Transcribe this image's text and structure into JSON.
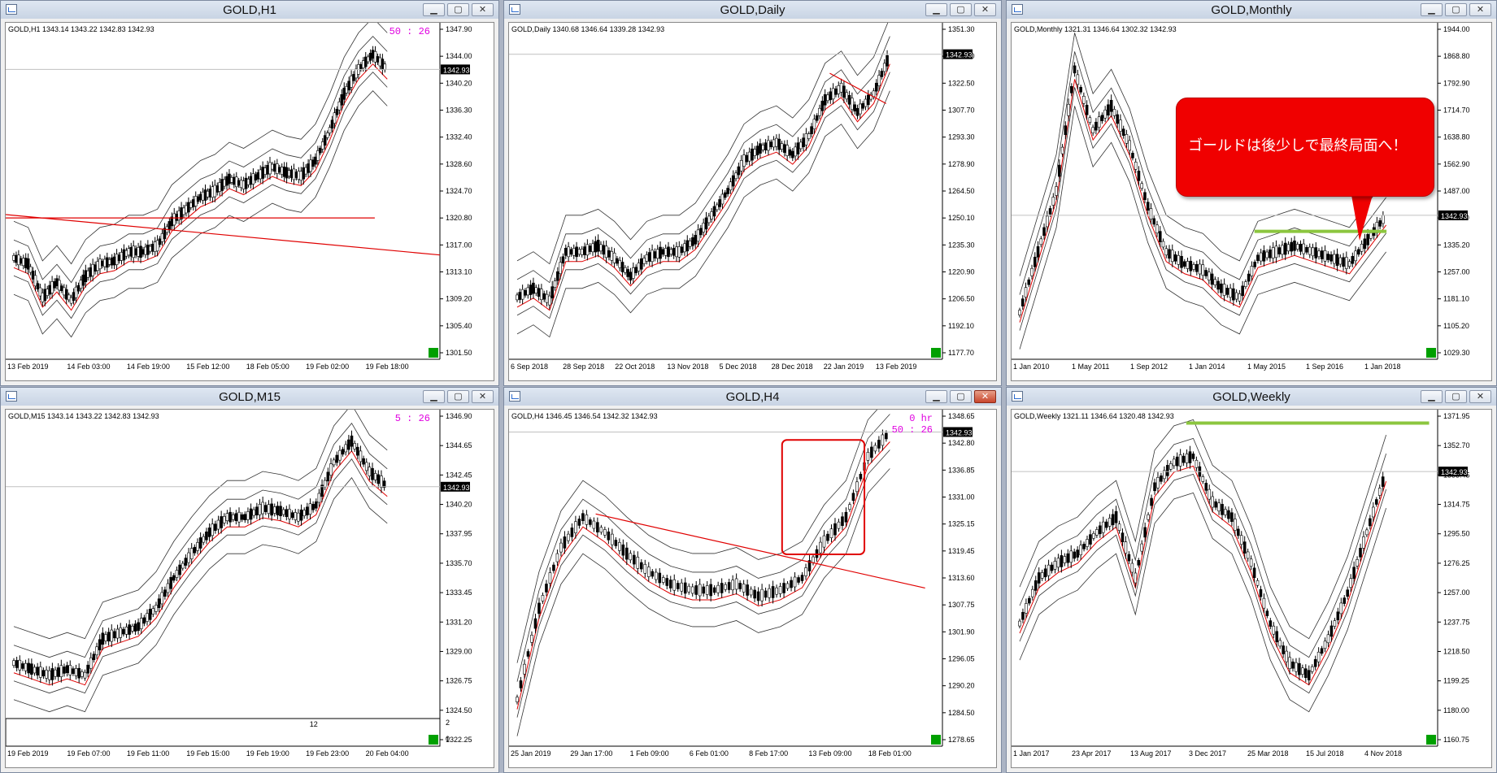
{
  "windows": [
    {
      "id": "h1",
      "title": "GOLD,H1",
      "symbol_info": "GOLD,H1  1343.14 1343.22 1342.83 1342.93",
      "timer": "50 : 26",
      "timer2": "",
      "price": "1342.93",
      "yticks": [
        "1347.90",
        "1344.00",
        "1340.20",
        "1336.30",
        "1332.40",
        "1328.60",
        "1324.70",
        "1320.80",
        "1317.00",
        "1313.10",
        "1309.20",
        "1305.40",
        "1301.50"
      ],
      "xticks": [
        "13 Feb 2019",
        "14 Feb 03:00",
        "14 Feb 19:00",
        "15 Feb 12:00",
        "18 Feb 05:00",
        "19 Feb 02:00",
        "19 Feb 18:00"
      ]
    },
    {
      "id": "daily",
      "title": "GOLD,Daily",
      "symbol_info": "GOLD,Daily  1340.68 1346.64 1339.28 1342.93",
      "timer": "",
      "timer2": "",
      "price": "1342.93",
      "yticks": [
        "1351.30",
        "1336.90",
        "1322.50",
        "1307.70",
        "1293.30",
        "1278.90",
        "1264.50",
        "1250.10",
        "1235.30",
        "1220.90",
        "1206.50",
        "1192.10",
        "1177.70"
      ],
      "xticks": [
        "6 Sep 2018",
        "28 Sep 2018",
        "22 Oct 2018",
        "13 Nov 2018",
        "5 Dec 2018",
        "28 Dec 2018",
        "22 Jan 2019",
        "13 Feb 2019"
      ]
    },
    {
      "id": "monthly",
      "title": "GOLD,Monthly",
      "symbol_info": "GOLD,Monthly  1321.31 1346.64 1302.32 1342.93",
      "timer": "",
      "timer2": "",
      "price": "1342.93",
      "yticks": [
        "1944.00",
        "1868.80",
        "1792.90",
        "1714.70",
        "1638.80",
        "1562.90",
        "1487.00",
        "1411.10",
        "1335.20",
        "1257.00",
        "1181.10",
        "1105.20",
        "1029.30"
      ],
      "xticks": [
        "1 Jan 2010",
        "1 May 2011",
        "1 Sep 2012",
        "1 Jan 2014",
        "1 May 2015",
        "1 Sep 2016",
        "1 Jan 2018"
      ]
    },
    {
      "id": "m15",
      "title": "GOLD,M15",
      "symbol_info": "GOLD,M15  1343.14 1343.22 1342.83 1342.93",
      "timer": "5 : 26",
      "timer2": "",
      "price": "1342.93",
      "yticks": [
        "1346.90",
        "1344.65",
        "1342.45",
        "1340.20",
        "1337.95",
        "1335.70",
        "1333.45",
        "1331.20",
        "1329.00",
        "1326.75",
        "1324.50",
        "1322.25"
      ],
      "xticks": [
        "19 Feb 2019",
        "19 Feb 07:00",
        "19 Feb 11:00",
        "19 Feb 15:00",
        "19 Feb 19:00",
        "19 Feb 23:00",
        "20 Feb 04:00"
      ],
      "subpanel_label": "12",
      "subpanel_tick_top": "2",
      "subpanel_tick_bottom": "0"
    },
    {
      "id": "h4",
      "title": "GOLD,H4",
      "symbol_info": "GOLD,H4  1346.45 1346.54 1342.32 1342.93",
      "timer": "0 hr",
      "timer2": "50 : 26",
      "price": "1342.93",
      "yticks": [
        "1348.65",
        "1342.80",
        "1336.85",
        "1331.00",
        "1325.15",
        "1319.45",
        "1313.60",
        "1307.75",
        "1301.90",
        "1296.05",
        "1290.20",
        "1284.50",
        "1278.65"
      ],
      "xticks": [
        "25 Jan 2019",
        "29 Jan 17:00",
        "1 Feb 09:00",
        "6 Feb 01:00",
        "8 Feb 17:00",
        "13 Feb 09:00",
        "18 Feb 01:00"
      ]
    },
    {
      "id": "weekly",
      "title": "GOLD,Weekly",
      "symbol_info": "GOLD,Weekly  1321.11 1346.64 1320.48 1342.93",
      "timer": "",
      "timer2": "",
      "price": "1342.93",
      "yticks": [
        "1371.95",
        "1352.70",
        "1333.45",
        "1314.75",
        "1295.50",
        "1276.25",
        "1257.00",
        "1237.75",
        "1218.50",
        "1199.25",
        "1180.00",
        "1160.75"
      ],
      "xticks": [
        "1 Jan 2017",
        "23 Apr 2017",
        "13 Aug 2017",
        "3 Dec 2017",
        "25 Mar 2018",
        "15 Jul 2018",
        "4 Nov 2018"
      ]
    }
  ],
  "callout_text": "ゴールドは後少しで最終局面へ！",
  "colors": {
    "accent_line": "#e00000",
    "green_line": "#8cc63f",
    "timer": "#e000e0"
  }
}
